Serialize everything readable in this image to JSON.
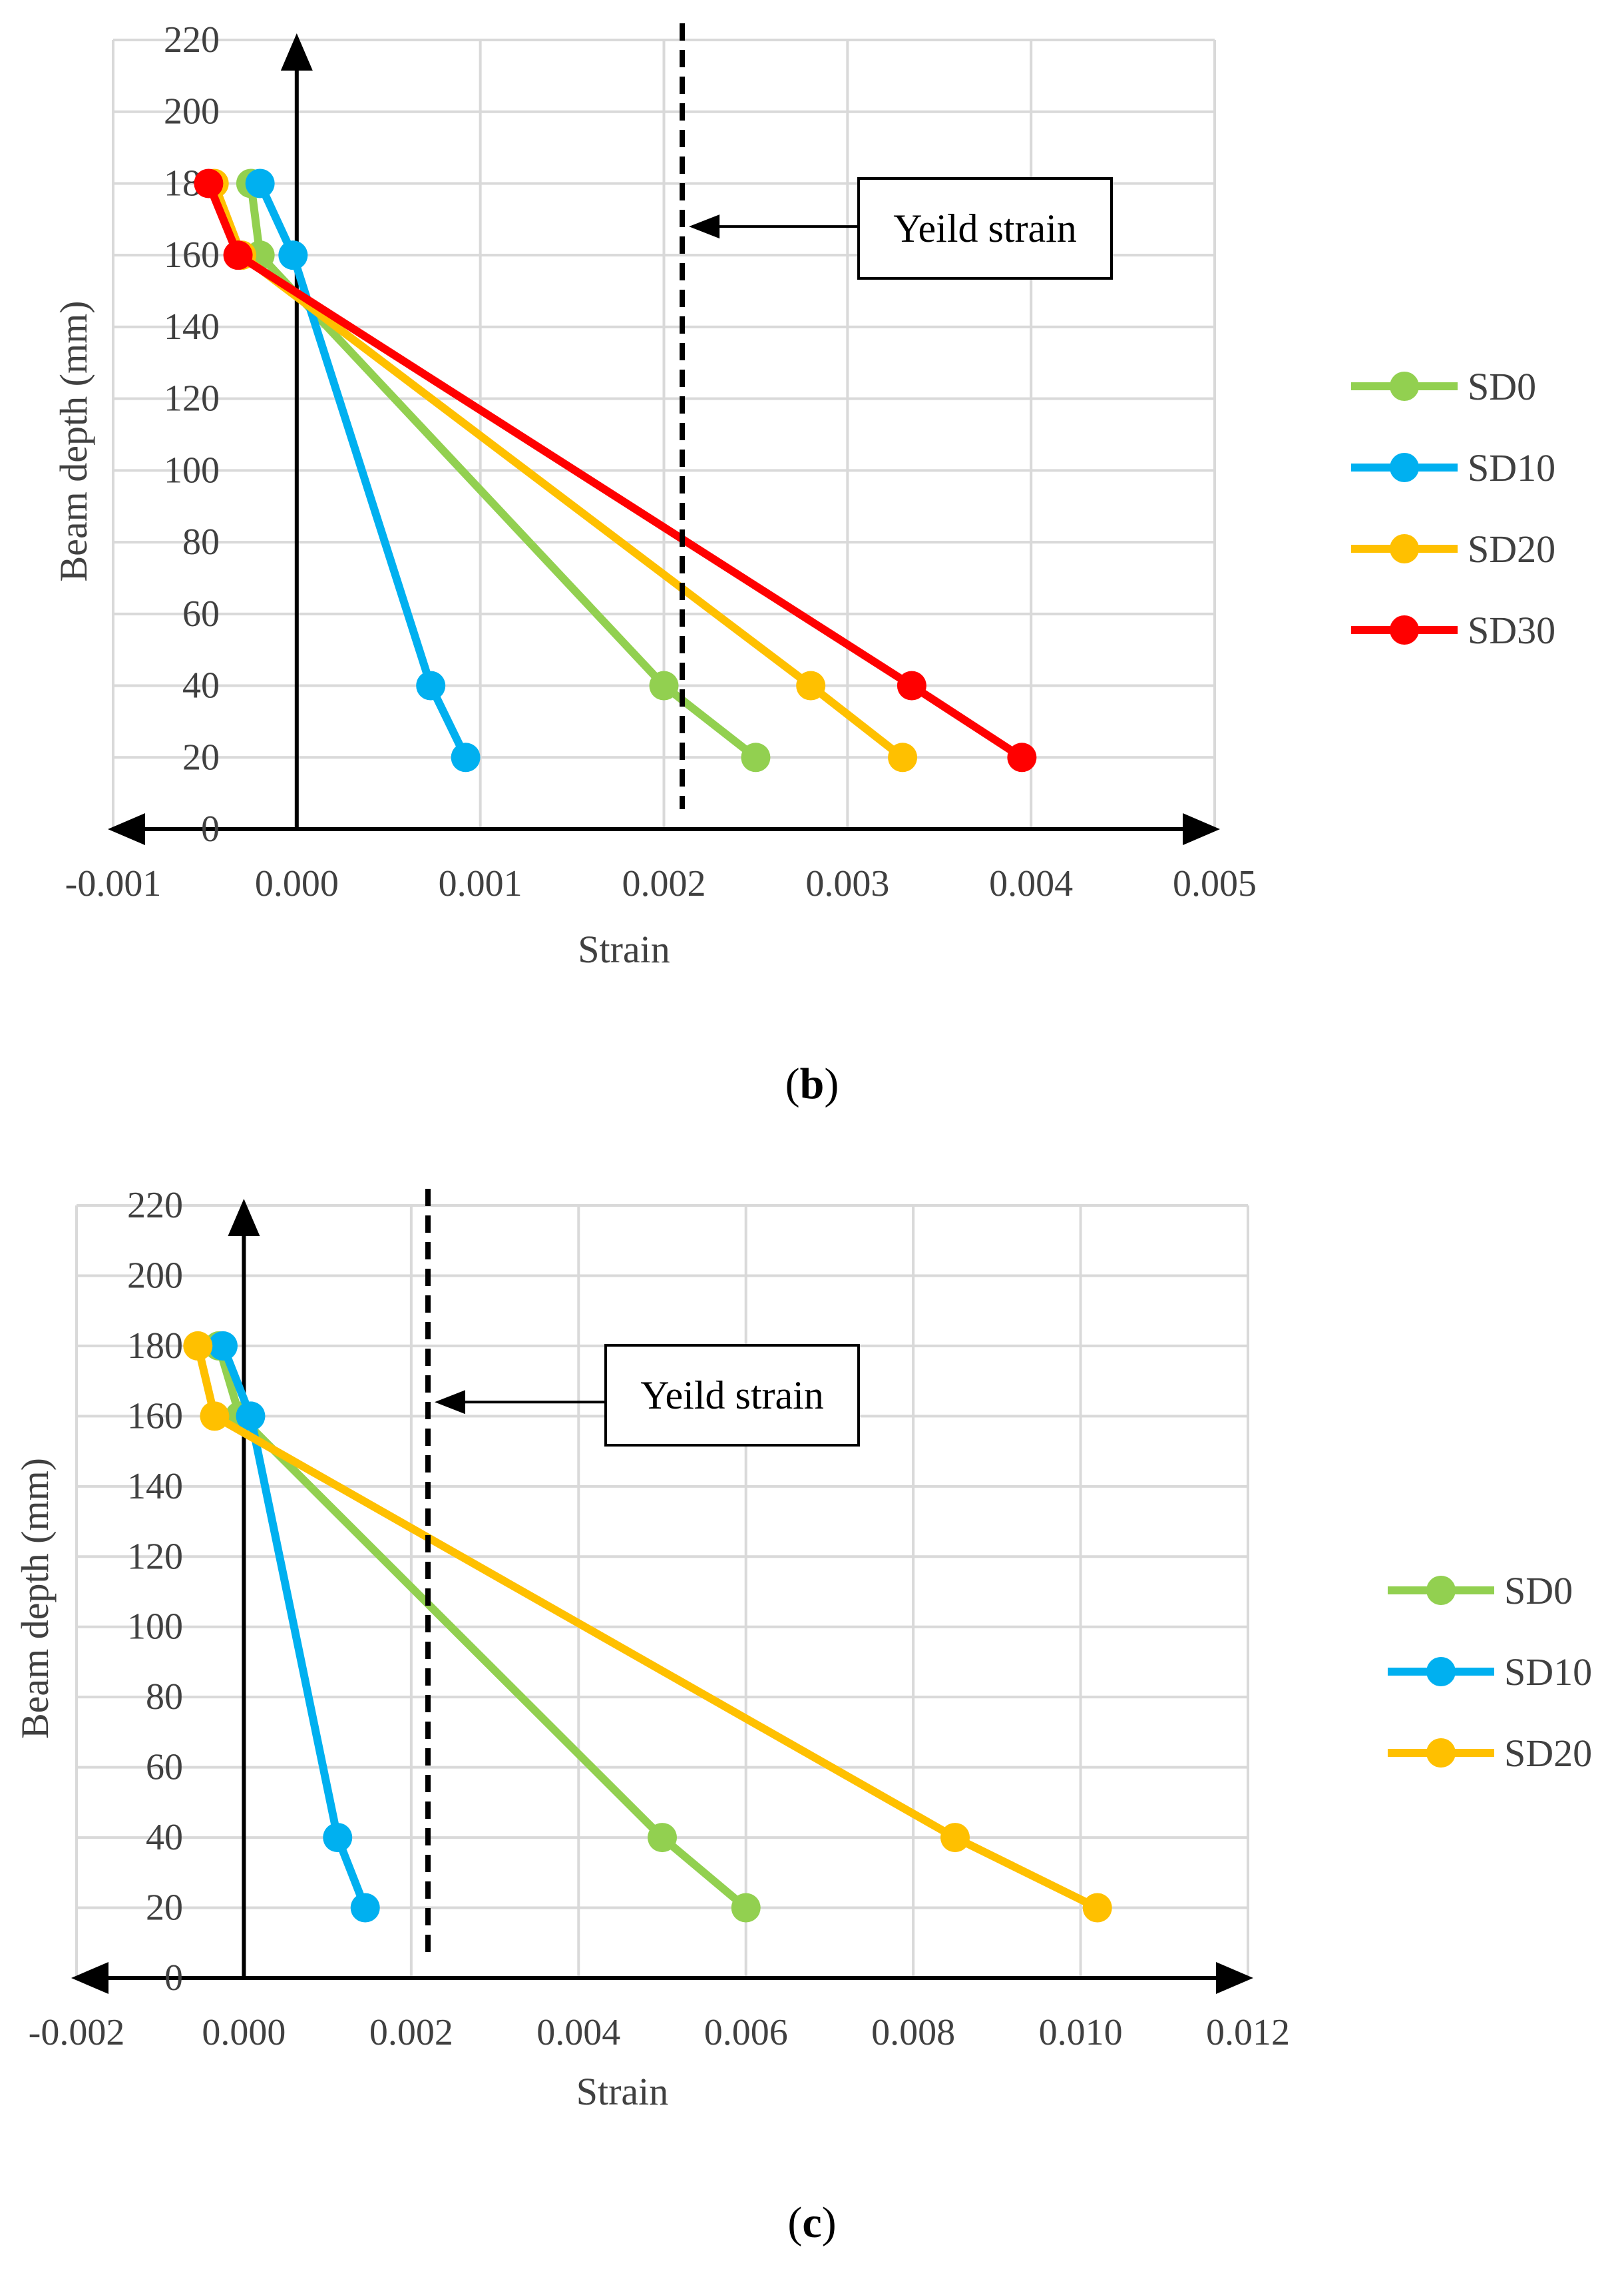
{
  "chart_data": [
    {
      "id": "b",
      "type": "line",
      "caption_letter": "b",
      "xlabel": "Strain",
      "ylabel": "Beam depth (mm)",
      "xlim": [
        -0.001,
        0.005
      ],
      "ylim": [
        0,
        220
      ],
      "x_ticks": [
        "-0.001",
        "0.000",
        "0.001",
        "0.002",
        "0.003",
        "0.004",
        "0.005"
      ],
      "y_ticks": [
        "0",
        "20",
        "40",
        "60",
        "80",
        "100",
        "120",
        "140",
        "160",
        "180",
        "200",
        "220"
      ],
      "grid": true,
      "legend_position": "right",
      "yield_strain": 0.0021,
      "annotation": "Yeild strain",
      "annotation_y": 168,
      "series": [
        {
          "name": "SD0",
          "color": "#92d050",
          "points": [
            [
              -0.00025,
              180
            ],
            [
              -0.0002,
              160
            ],
            [
              0.002,
              40
            ],
            [
              0.0025,
              20
            ]
          ]
        },
        {
          "name": "SD10",
          "color": "#00b0f0",
          "points": [
            [
              -0.0002,
              180
            ],
            [
              -2e-05,
              160
            ],
            [
              0.00073,
              40
            ],
            [
              0.00092,
              20
            ]
          ]
        },
        {
          "name": "SD20",
          "color": "#ffc000",
          "points": [
            [
              -0.00045,
              180
            ],
            [
              -0.0003,
              160
            ],
            [
              0.0028,
              40
            ],
            [
              0.0033,
              20
            ]
          ]
        },
        {
          "name": "SD30",
          "color": "#ff0000",
          "points": [
            [
              -0.00048,
              180
            ],
            [
              -0.00032,
              160
            ],
            [
              0.00335,
              40
            ],
            [
              0.00395,
              20
            ]
          ]
        }
      ]
    },
    {
      "id": "c",
      "type": "line",
      "caption_letter": "c",
      "xlabel": "Strain",
      "ylabel": "Beam depth (mm)",
      "xlim": [
        -0.002,
        0.012
      ],
      "ylim": [
        0,
        220
      ],
      "x_ticks": [
        "-0.002",
        "0.000",
        "0.002",
        "0.004",
        "0.006",
        "0.008",
        "0.010",
        "0.012"
      ],
      "y_ticks": [
        "0",
        "20",
        "40",
        "60",
        "80",
        "100",
        "120",
        "140",
        "160",
        "180",
        "200",
        "220"
      ],
      "grid": true,
      "legend_position": "right",
      "yield_strain": 0.0022,
      "annotation": "Yeild strain",
      "annotation_y": 164,
      "series": [
        {
          "name": "SD0",
          "color": "#92d050",
          "points": [
            [
              -0.0003,
              180
            ],
            [
              -5e-05,
              160
            ],
            [
              0.005,
              40
            ],
            [
              0.006,
              20
            ]
          ]
        },
        {
          "name": "SD10",
          "color": "#00b0f0",
          "points": [
            [
              -0.00025,
              180
            ],
            [
              8e-05,
              160
            ],
            [
              0.00112,
              40
            ],
            [
              0.00145,
              20
            ]
          ]
        },
        {
          "name": "SD20",
          "color": "#ffc000",
          "points": [
            [
              -0.00055,
              180
            ],
            [
              -0.00035,
              160
            ],
            [
              0.0085,
              40
            ],
            [
              0.0102,
              20
            ]
          ]
        }
      ]
    }
  ]
}
